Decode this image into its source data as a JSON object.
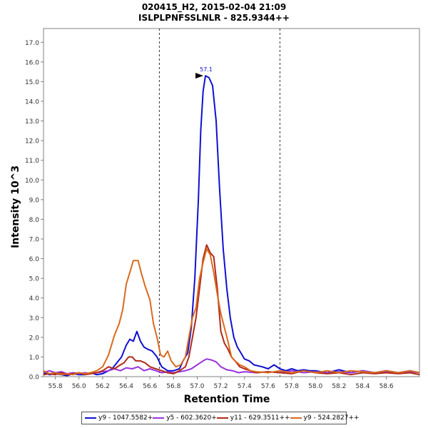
{
  "chart_data": {
    "type": "line",
    "title": "020415_H2, 2015-02-04 21:09",
    "subtitle": "ISLPLPNFSSLNLR - 825.9344++",
    "xlabel": "Retention Time",
    "ylabel": "Intensity 10^3",
    "xlim": [
      55.7,
      58.88
    ],
    "ylim": [
      0,
      17.7
    ],
    "x_ticks": [
      "55.8",
      "56.0",
      "56.2",
      "56.4",
      "56.6",
      "56.8",
      "57.0",
      "57.2",
      "57.4",
      "57.6",
      "57.8",
      "58.0",
      "58.2",
      "58.4",
      "58.6"
    ],
    "y_ticks": [
      "0.0",
      "1.0",
      "2.0",
      "3.0",
      "4.0",
      "5.0",
      "6.0",
      "7.0",
      "8.0",
      "9.0",
      "10.0",
      "11.0",
      "12.0",
      "13.0",
      "14.0",
      "15.0",
      "16.0",
      "17.0"
    ],
    "vlines": [
      56.68,
      57.7
    ],
    "peak_annotation": {
      "label": "57.1",
      "x": 57.07,
      "y": 15.3
    },
    "series": [
      {
        "name": "y9 - 1047.5582+",
        "color": "#1010d0",
        "points": [
          [
            55.7,
            0.2
          ],
          [
            55.75,
            0.1
          ],
          [
            55.8,
            0.15
          ],
          [
            55.85,
            0.1
          ],
          [
            55.9,
            0.05
          ],
          [
            55.95,
            0.15
          ],
          [
            56.0,
            0.1
          ],
          [
            56.05,
            0.1
          ],
          [
            56.1,
            0.2
          ],
          [
            56.15,
            0.1
          ],
          [
            56.2,
            0.15
          ],
          [
            56.25,
            0.3
          ],
          [
            56.28,
            0.4
          ],
          [
            56.32,
            0.7
          ],
          [
            56.36,
            1.0
          ],
          [
            56.4,
            1.6
          ],
          [
            56.43,
            1.9
          ],
          [
            56.46,
            1.8
          ],
          [
            56.49,
            2.3
          ],
          [
            56.52,
            1.8
          ],
          [
            56.55,
            1.5
          ],
          [
            56.58,
            1.4
          ],
          [
            56.62,
            1.3
          ],
          [
            56.66,
            1.0
          ],
          [
            56.7,
            0.5
          ],
          [
            56.75,
            0.3
          ],
          [
            56.8,
            0.3
          ],
          [
            56.85,
            0.4
          ],
          [
            56.88,
            0.8
          ],
          [
            56.92,
            1.2
          ],
          [
            56.95,
            2.5
          ],
          [
            56.98,
            5.0
          ],
          [
            57.01,
            9.0
          ],
          [
            57.03,
            12.5
          ],
          [
            57.05,
            14.5
          ],
          [
            57.07,
            15.3
          ],
          [
            57.1,
            15.2
          ],
          [
            57.13,
            14.8
          ],
          [
            57.16,
            13.0
          ],
          [
            57.19,
            9.5
          ],
          [
            57.22,
            6.5
          ],
          [
            57.25,
            4.5
          ],
          [
            57.28,
            3.0
          ],
          [
            57.31,
            2.0
          ],
          [
            57.34,
            1.5
          ],
          [
            57.37,
            1.2
          ],
          [
            57.4,
            0.9
          ],
          [
            57.44,
            0.8
          ],
          [
            57.48,
            0.6
          ],
          [
            57.55,
            0.5
          ],
          [
            57.6,
            0.4
          ],
          [
            57.65,
            0.6
          ],
          [
            57.7,
            0.4
          ],
          [
            57.75,
            0.3
          ],
          [
            57.8,
            0.4
          ],
          [
            57.85,
            0.3
          ],
          [
            57.9,
            0.35
          ],
          [
            57.95,
            0.3
          ],
          [
            58.0,
            0.3
          ],
          [
            58.1,
            0.2
          ],
          [
            58.2,
            0.35
          ],
          [
            58.3,
            0.2
          ],
          [
            58.4,
            0.3
          ],
          [
            58.5,
            0.2
          ],
          [
            58.6,
            0.3
          ],
          [
            58.7,
            0.2
          ],
          [
            58.8,
            0.3
          ],
          [
            58.88,
            0.2
          ]
        ]
      },
      {
        "name": "y5 - 602.3620+",
        "color": "#9933dd",
        "points": [
          [
            55.7,
            0.2
          ],
          [
            55.75,
            0.3
          ],
          [
            55.8,
            0.2
          ],
          [
            55.85,
            0.25
          ],
          [
            55.9,
            0.15
          ],
          [
            55.95,
            0.2
          ],
          [
            56.0,
            0.15
          ],
          [
            56.05,
            0.2
          ],
          [
            56.1,
            0.15
          ],
          [
            56.15,
            0.2
          ],
          [
            56.2,
            0.25
          ],
          [
            56.25,
            0.3
          ],
          [
            56.3,
            0.4
          ],
          [
            56.35,
            0.3
          ],
          [
            56.4,
            0.45
          ],
          [
            56.45,
            0.4
          ],
          [
            56.5,
            0.5
          ],
          [
            56.55,
            0.3
          ],
          [
            56.6,
            0.4
          ],
          [
            56.65,
            0.3
          ],
          [
            56.7,
            0.2
          ],
          [
            56.75,
            0.25
          ],
          [
            56.8,
            0.2
          ],
          [
            56.85,
            0.25
          ],
          [
            56.9,
            0.3
          ],
          [
            56.95,
            0.4
          ],
          [
            57.0,
            0.6
          ],
          [
            57.05,
            0.8
          ],
          [
            57.08,
            0.9
          ],
          [
            57.12,
            0.85
          ],
          [
            57.16,
            0.75
          ],
          [
            57.2,
            0.5
          ],
          [
            57.25,
            0.35
          ],
          [
            57.3,
            0.3
          ],
          [
            57.35,
            0.2
          ],
          [
            57.4,
            0.25
          ],
          [
            57.5,
            0.2
          ],
          [
            57.6,
            0.25
          ],
          [
            57.7,
            0.2
          ],
          [
            57.8,
            0.3
          ],
          [
            57.9,
            0.2
          ],
          [
            58.0,
            0.25
          ],
          [
            58.1,
            0.2
          ],
          [
            58.2,
            0.25
          ],
          [
            58.3,
            0.2
          ],
          [
            58.4,
            0.3
          ],
          [
            58.5,
            0.2
          ],
          [
            58.6,
            0.25
          ],
          [
            58.7,
            0.2
          ],
          [
            58.8,
            0.25
          ],
          [
            58.88,
            0.2
          ]
        ]
      },
      {
        "name": "y11 - 629.3511++",
        "color": "#b02a1a",
        "points": [
          [
            55.7,
            0.1
          ],
          [
            55.75,
            0.15
          ],
          [
            55.8,
            0.1
          ],
          [
            55.85,
            0.2
          ],
          [
            55.9,
            0.1
          ],
          [
            55.95,
            0.15
          ],
          [
            56.0,
            0.2
          ],
          [
            56.05,
            0.1
          ],
          [
            56.1,
            0.15
          ],
          [
            56.15,
            0.2
          ],
          [
            56.2,
            0.3
          ],
          [
            56.25,
            0.5
          ],
          [
            56.3,
            0.4
          ],
          [
            56.35,
            0.6
          ],
          [
            56.38,
            0.7
          ],
          [
            56.42,
            1.0
          ],
          [
            56.45,
            1.0
          ],
          [
            56.48,
            0.8
          ],
          [
            56.52,
            0.8
          ],
          [
            56.56,
            0.7
          ],
          [
            56.6,
            0.5
          ],
          [
            56.65,
            0.4
          ],
          [
            56.7,
            0.3
          ],
          [
            56.75,
            0.2
          ],
          [
            56.8,
            0.15
          ],
          [
            56.85,
            0.3
          ],
          [
            56.9,
            0.5
          ],
          [
            56.93,
            1.0
          ],
          [
            56.96,
            2.0
          ],
          [
            56.99,
            3.0
          ],
          [
            57.02,
            4.5
          ],
          [
            57.05,
            6.0
          ],
          [
            57.08,
            6.7
          ],
          [
            57.11,
            6.3
          ],
          [
            57.14,
            6.1
          ],
          [
            57.17,
            4.5
          ],
          [
            57.2,
            2.3
          ],
          [
            57.23,
            1.7
          ],
          [
            57.26,
            1.4
          ],
          [
            57.29,
            1.0
          ],
          [
            57.32,
            0.8
          ],
          [
            57.36,
            0.5
          ],
          [
            57.4,
            0.4
          ],
          [
            57.45,
            0.3
          ],
          [
            57.5,
            0.2
          ],
          [
            57.6,
            0.25
          ],
          [
            57.7,
            0.2
          ],
          [
            57.8,
            0.15
          ],
          [
            57.9,
            0.3
          ],
          [
            58.0,
            0.2
          ],
          [
            58.1,
            0.15
          ],
          [
            58.2,
            0.2
          ],
          [
            58.3,
            0.1
          ],
          [
            58.4,
            0.2
          ],
          [
            58.5,
            0.15
          ],
          [
            58.6,
            0.2
          ],
          [
            58.7,
            0.15
          ],
          [
            58.8,
            0.2
          ],
          [
            58.88,
            0.1
          ]
        ]
      },
      {
        "name": "y9 - 524.2827++",
        "color": "#d96a1e",
        "points": [
          [
            55.7,
            0.3
          ],
          [
            55.75,
            0.15
          ],
          [
            55.8,
            0.2
          ],
          [
            55.85,
            0.1
          ],
          [
            55.9,
            0.15
          ],
          [
            55.95,
            0.1
          ],
          [
            56.0,
            0.2
          ],
          [
            56.05,
            0.15
          ],
          [
            56.1,
            0.2
          ],
          [
            56.15,
            0.3
          ],
          [
            56.2,
            0.5
          ],
          [
            56.25,
            1.1
          ],
          [
            56.3,
            2.1
          ],
          [
            56.34,
            2.7
          ],
          [
            56.37,
            3.4
          ],
          [
            56.4,
            4.7
          ],
          [
            56.43,
            5.3
          ],
          [
            56.46,
            5.9
          ],
          [
            56.5,
            5.9
          ],
          [
            56.53,
            5.2
          ],
          [
            56.56,
            4.6
          ],
          [
            56.6,
            3.9
          ],
          [
            56.63,
            2.7
          ],
          [
            56.66,
            2.0
          ],
          [
            56.69,
            1.1
          ],
          [
            56.72,
            1.0
          ],
          [
            56.75,
            1.3
          ],
          [
            56.78,
            0.8
          ],
          [
            56.82,
            0.5
          ],
          [
            56.86,
            0.6
          ],
          [
            56.9,
            1.0
          ],
          [
            56.93,
            2.0
          ],
          [
            56.96,
            3.0
          ],
          [
            56.99,
            3.5
          ],
          [
            57.02,
            5.0
          ],
          [
            57.05,
            5.8
          ],
          [
            57.08,
            6.5
          ],
          [
            57.11,
            6.2
          ],
          [
            57.14,
            5.3
          ],
          [
            57.17,
            4.2
          ],
          [
            57.2,
            3.2
          ],
          [
            57.23,
            2.5
          ],
          [
            57.26,
            1.8
          ],
          [
            57.29,
            1.0
          ],
          [
            57.32,
            0.8
          ],
          [
            57.36,
            0.6
          ],
          [
            57.4,
            0.5
          ],
          [
            57.45,
            0.3
          ],
          [
            57.5,
            0.25
          ],
          [
            57.6,
            0.2
          ],
          [
            57.7,
            0.3
          ],
          [
            57.8,
            0.2
          ],
          [
            57.9,
            0.3
          ],
          [
            58.0,
            0.2
          ],
          [
            58.1,
            0.3
          ],
          [
            58.2,
            0.2
          ],
          [
            58.3,
            0.3
          ],
          [
            58.4,
            0.25
          ],
          [
            58.5,
            0.2
          ],
          [
            58.6,
            0.3
          ],
          [
            58.7,
            0.2
          ],
          [
            58.8,
            0.3
          ],
          [
            58.88,
            0.2
          ]
        ]
      }
    ]
  }
}
